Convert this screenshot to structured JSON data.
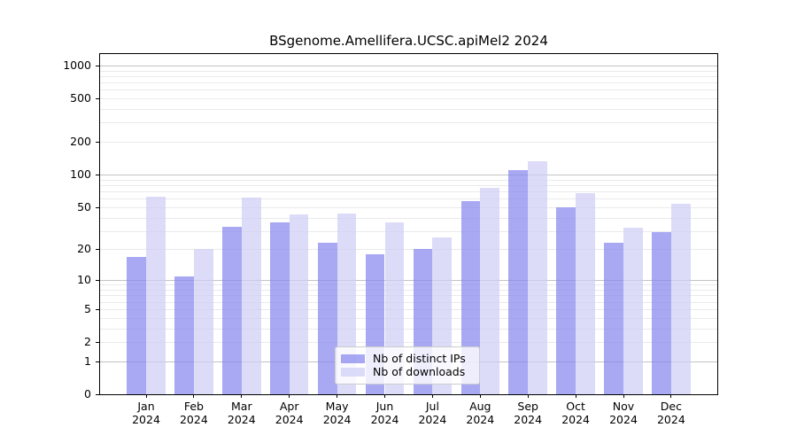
{
  "figure": {
    "background": "#ffffff",
    "spine_color": "#000000",
    "gridline_major_color": "#c3c3c3",
    "gridline_minor_color": "#eaeaea"
  },
  "chart_data": {
    "type": "bar",
    "title": "BSgenome.Amellifera.UCSC.apiMel2 2024",
    "categories": [
      "Jan",
      "Feb",
      "Mar",
      "Apr",
      "May",
      "Jun",
      "Jul",
      "Aug",
      "Sep",
      "Oct",
      "Nov",
      "Dec"
    ],
    "year": "2024",
    "series": [
      {
        "name": "Nb of distinct IPs",
        "color": "rgba(134,134,238,0.72)",
        "color_hex_on_white": "#a8a8f3",
        "values": [
          17,
          11,
          33,
          36,
          23,
          18,
          20,
          57,
          110,
          50,
          23,
          29
        ]
      },
      {
        "name": "Nb of downloads",
        "color": "rgba(206,206,247,0.72)",
        "color_hex_on_white": "#dcdcf8",
        "values": [
          63,
          20,
          61,
          43,
          44,
          36,
          26,
          76,
          133,
          68,
          32,
          54
        ]
      }
    ],
    "xlabel": "",
    "ylabel": "",
    "y_ticks": [
      0,
      1,
      2,
      5,
      10,
      20,
      50,
      100,
      200,
      500,
      1000
    ],
    "y_scale": "log10(1+x)",
    "ylim": [
      0,
      1270
    ],
    "grid": true,
    "legend_position": "lower center"
  }
}
